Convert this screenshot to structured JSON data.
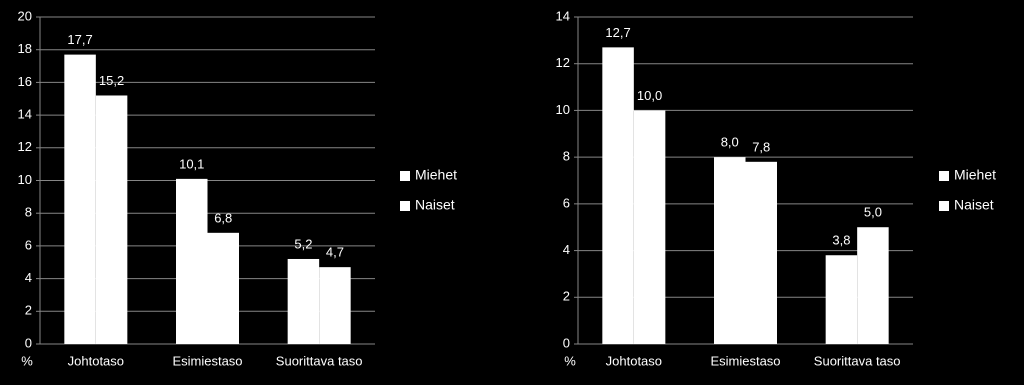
{
  "chart_data": [
    {
      "type": "bar",
      "y_label": "%",
      "categories": [
        "Johtotaso",
        "Esimiestaso",
        "Suorittava taso"
      ],
      "series": [
        {
          "name": "Miehet",
          "color": "#ffffff",
          "values": [
            17.7,
            10.1,
            5.2
          ],
          "value_labels": [
            "17,7",
            "10,1",
            "5,2"
          ]
        },
        {
          "name": "Naiset",
          "color": "#ffffff",
          "values": [
            15.2,
            6.8,
            4.7
          ],
          "value_labels": [
            "15,2",
            "6,8",
            "4,7"
          ]
        }
      ],
      "ylim": [
        0,
        20
      ],
      "yticks": [
        0,
        2,
        4,
        6,
        8,
        10,
        12,
        14,
        16,
        18,
        20
      ],
      "grid": true,
      "legend": "right"
    },
    {
      "type": "bar",
      "y_label": "%",
      "categories": [
        "Johtotaso",
        "Esimiestaso",
        "Suorittava taso"
      ],
      "series": [
        {
          "name": "Miehet",
          "color": "#ffffff",
          "values": [
            12.7,
            8.0,
            3.8
          ],
          "value_labels": [
            "12,7",
            "8,0",
            "3,8"
          ]
        },
        {
          "name": "Naiset",
          "color": "#ffffff",
          "values": [
            10.0,
            7.8,
            5.0
          ],
          "value_labels": [
            "10,0",
            "7,8",
            "5,0"
          ]
        }
      ],
      "ylim": [
        0,
        14
      ],
      "yticks": [
        0,
        2,
        4,
        6,
        8,
        10,
        12,
        14
      ],
      "grid": true,
      "legend": "right"
    }
  ]
}
